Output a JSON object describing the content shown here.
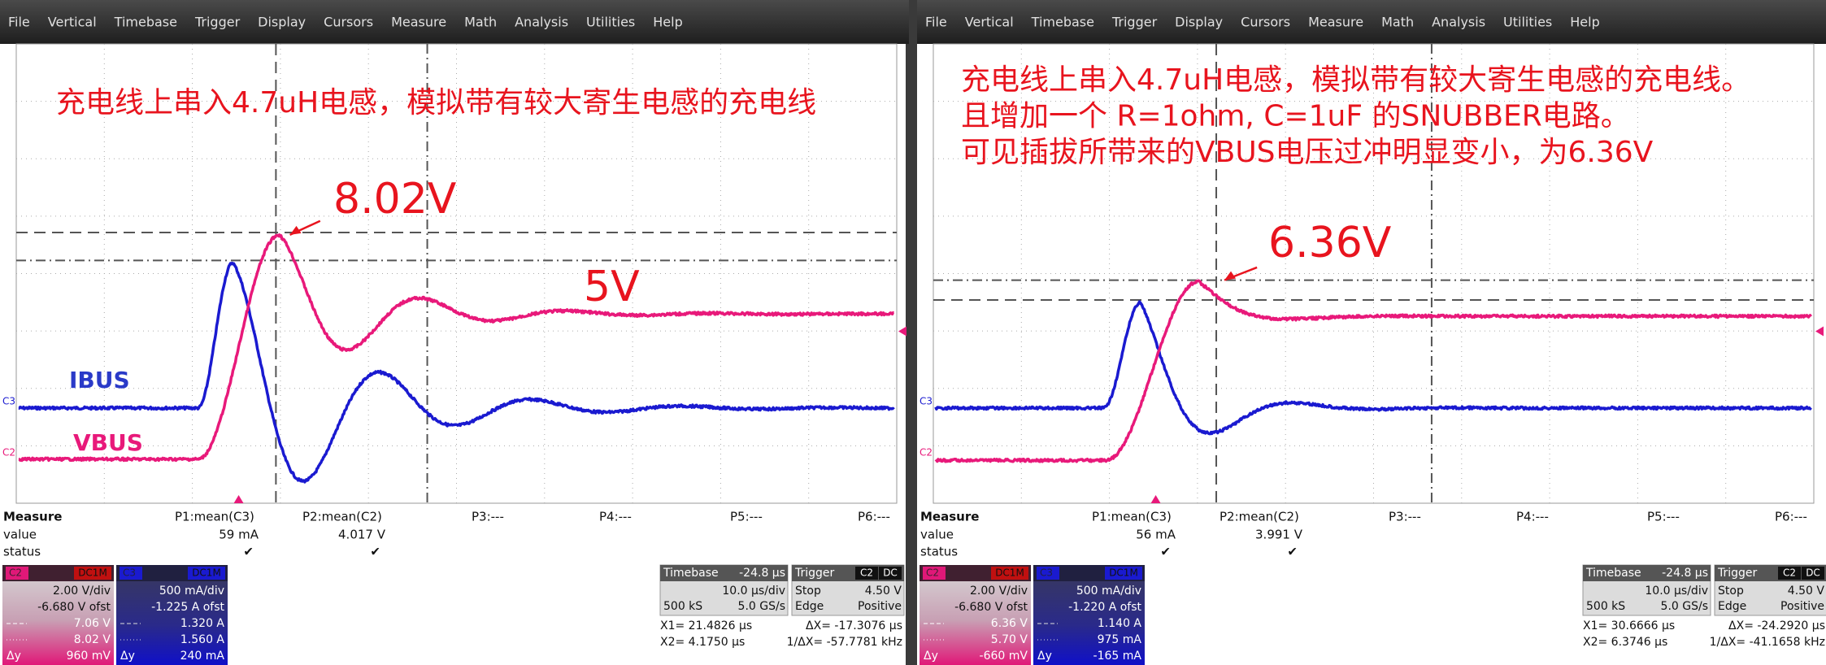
{
  "menu": [
    "File",
    "Vertical",
    "Timebase",
    "Trigger",
    "Display",
    "Cursors",
    "Measure",
    "Math",
    "Analysis",
    "Utilities",
    "Help"
  ],
  "panels": [
    {
      "annotations": [
        "充电线上串入4.7uH电感，模拟带有较大寄生电感的充电线"
      ],
      "peak_label": "8.02V",
      "level_label": "5V",
      "trace_labels": [
        "IBUS",
        "VBUS"
      ],
      "channel_markers": [
        "C3",
        "C2"
      ],
      "measure": {
        "header": [
          "Measure",
          "P1:mean(C3)",
          "P2:mean(C2)",
          "P3:---",
          "P4:---",
          "P5:---",
          "P6:---"
        ],
        "rows": [
          [
            "value",
            "59 mA",
            "4.017 V"
          ],
          [
            "status",
            "✔",
            "✔"
          ]
        ]
      },
      "channels": [
        {
          "name": "C2",
          "coupling": "DC1M",
          "lines": [
            "2.00 V/div",
            "-6.680 V ofst",
            "7.06 V",
            "8.02 V",
            "960 mV"
          ],
          "delta": "Δy"
        },
        {
          "name": "C3",
          "coupling": "DC1M",
          "lines": [
            "500 mA/div",
            "-1.225 A ofst",
            "1.320 A",
            "1.560 A",
            "240 mA"
          ],
          "delta": "Δy"
        }
      ],
      "timebase": {
        "label": "Timebase",
        "offset": "-24.8 µs",
        "div": "10.0 µs/div",
        "samples": "500 kS",
        "rate": "5.0 GS/s"
      },
      "trigger": {
        "label": "Trigger",
        "source": "C2",
        "coupling": "DC",
        "mode": "Stop",
        "level": "4.50 V",
        "type": "Edge",
        "slope": "Positive"
      },
      "cursors": [
        "X1= 21.4826 µs",
        "ΔX= -17.3076 µs",
        "X2= 4.1750 µs",
        "1/ΔX= -57.7781 kHz"
      ]
    },
    {
      "annotations": [
        "充电线上串入4.7uH电感，模拟带有较大寄生电感的充电线。",
        "且增加一个 R=1ohm, C=1uF 的SNUBBER电路。",
        "可见插拔所带来的VBUS电压过冲明显变小，为6.36V"
      ],
      "peak_label": "6.36V",
      "channel_markers": [
        "C3",
        "C2"
      ],
      "measure": {
        "header": [
          "Measure",
          "P1:mean(C3)",
          "P2:mean(C2)",
          "P3:---",
          "P4:---",
          "P5:---",
          "P6:---"
        ],
        "rows": [
          [
            "value",
            "56 mA",
            "3.991 V"
          ],
          [
            "status",
            "✔",
            "✔"
          ]
        ]
      },
      "channels": [
        {
          "name": "C2",
          "coupling": "DC1M",
          "lines": [
            "2.00 V/div",
            "-6.680 V ofst",
            "6.36 V",
            "5.70 V",
            "-660 mV"
          ],
          "delta": "Δy"
        },
        {
          "name": "C3",
          "coupling": "DC1M",
          "lines": [
            "500 mA/div",
            "-1.220 A ofst",
            "1.140 A",
            "975 mA",
            "-165 mA"
          ],
          "delta": "Δy"
        }
      ],
      "timebase": {
        "label": "Timebase",
        "offset": "-24.8 µs",
        "div": "10.0 µs/div",
        "samples": "500 kS",
        "rate": "5.0 GS/s"
      },
      "trigger": {
        "label": "Trigger",
        "source": "C2",
        "coupling": "DC",
        "mode": "Stop",
        "level": "4.50 V",
        "type": "Edge",
        "slope": "Positive"
      },
      "cursors": [
        "X1= 30.6666 µs",
        "ΔX= -24.2920 µs",
        "X2= 6.3746 µs",
        "1/ΔX= -41.1658 kHz"
      ]
    }
  ]
}
